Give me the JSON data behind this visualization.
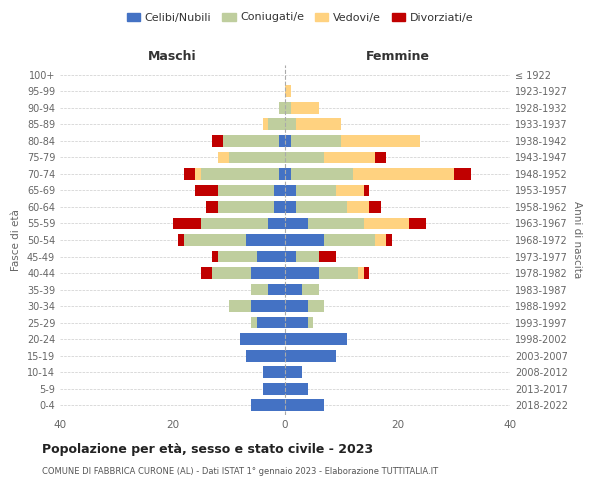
{
  "age_groups": [
    "100+",
    "95-99",
    "90-94",
    "85-89",
    "80-84",
    "75-79",
    "70-74",
    "65-69",
    "60-64",
    "55-59",
    "50-54",
    "45-49",
    "40-44",
    "35-39",
    "30-34",
    "25-29",
    "20-24",
    "15-19",
    "10-14",
    "5-9",
    "0-4"
  ],
  "birth_years": [
    "≤ 1922",
    "1923-1927",
    "1928-1932",
    "1933-1937",
    "1938-1942",
    "1943-1947",
    "1948-1952",
    "1953-1957",
    "1958-1962",
    "1963-1967",
    "1968-1972",
    "1973-1977",
    "1978-1982",
    "1983-1987",
    "1988-1992",
    "1993-1997",
    "1998-2002",
    "2003-2007",
    "2008-2012",
    "2013-2017",
    "2018-2022"
  ],
  "maschi": {
    "celibi": [
      0,
      0,
      0,
      0,
      1,
      0,
      1,
      2,
      2,
      3,
      7,
      5,
      6,
      3,
      6,
      5,
      8,
      7,
      4,
      4,
      6
    ],
    "coniugati": [
      0,
      0,
      1,
      3,
      10,
      10,
      14,
      10,
      10,
      12,
      11,
      7,
      7,
      3,
      4,
      1,
      0,
      0,
      0,
      0,
      0
    ],
    "vedovi": [
      0,
      0,
      0,
      1,
      0,
      2,
      1,
      0,
      0,
      0,
      0,
      0,
      0,
      0,
      0,
      0,
      0,
      0,
      0,
      0,
      0
    ],
    "divorziati": [
      0,
      0,
      0,
      0,
      2,
      0,
      2,
      4,
      2,
      5,
      1,
      1,
      2,
      0,
      0,
      0,
      0,
      0,
      0,
      0,
      0
    ]
  },
  "femmine": {
    "nubili": [
      0,
      0,
      0,
      0,
      1,
      0,
      1,
      2,
      2,
      4,
      7,
      2,
      6,
      3,
      4,
      4,
      11,
      9,
      3,
      4,
      7
    ],
    "coniugate": [
      0,
      0,
      1,
      2,
      9,
      7,
      11,
      7,
      9,
      10,
      9,
      4,
      7,
      3,
      3,
      1,
      0,
      0,
      0,
      0,
      0
    ],
    "vedove": [
      0,
      1,
      5,
      8,
      14,
      9,
      18,
      5,
      4,
      8,
      2,
      0,
      1,
      0,
      0,
      0,
      0,
      0,
      0,
      0,
      0
    ],
    "divorziate": [
      0,
      0,
      0,
      0,
      0,
      2,
      3,
      1,
      2,
      3,
      1,
      3,
      1,
      0,
      0,
      0,
      0,
      0,
      0,
      0,
      0
    ]
  },
  "colors": {
    "celibi": "#4472C4",
    "coniugati": "#BFCE9E",
    "vedovi": "#FFD280",
    "divorziati": "#C00000"
  },
  "xlim": 40,
  "title": "Popolazione per età, sesso e stato civile - 2023",
  "subtitle": "COMUNE DI FABBRICA CURONE (AL) - Dati ISTAT 1° gennaio 2023 - Elaborazione TUTTITALIA.IT",
  "ylabel_left": "Fasce di età",
  "ylabel_right": "Anni di nascita",
  "legend_labels": [
    "Celibi/Nubili",
    "Coniugati/e",
    "Vedovi/e",
    "Divorziati/e"
  ],
  "background_color": "#ffffff",
  "grid_color": "#cccccc"
}
